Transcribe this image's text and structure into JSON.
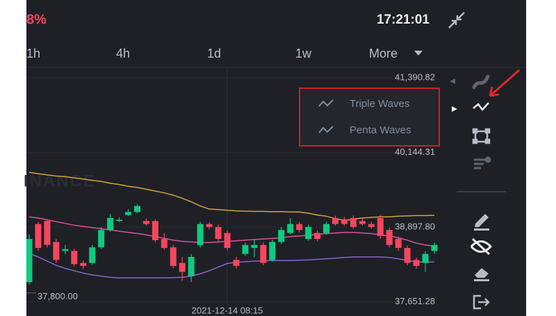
{
  "header": {
    "change": "8%",
    "time": "17:21:01"
  },
  "timeframes": [
    "1h",
    "4h",
    "1d",
    "1w"
  ],
  "more": "More",
  "watermark": "INANCE",
  "menu": {
    "items": [
      "Triple Waves",
      "Penta Waves"
    ]
  },
  "chart_data": {
    "type": "candlestick",
    "ylim": [
      37530,
      41530
    ],
    "yticks": [
      {
        "value": 41390.82,
        "label": "41,390.82"
      },
      {
        "value": 40144.31,
        "label": "40,144.31"
      },
      {
        "value": 38897.8,
        "label": "38,897.80"
      },
      {
        "value": 37651.28,
        "label": "37,651.28"
      }
    ],
    "crosshair": {
      "price": {
        "value": 37800,
        "label": "37,800.00"
      },
      "time": "2021-12-14 08:15"
    },
    "up_color": "#0ecb81",
    "down_color": "#f6465d",
    "open": [
      37980,
      38950,
      39000,
      38650,
      38500,
      38500,
      38300,
      38300,
      38560,
      38850,
      39000,
      39100,
      39150,
      39000,
      39000,
      38700,
      38560,
      38300,
      38080,
      38600,
      38950,
      38900,
      38800,
      38350,
      38450,
      38550,
      38600,
      38350,
      38650,
      38800,
      38950,
      38700,
      38800,
      38800,
      39050,
      39030,
      39050,
      39000,
      38950,
      39050,
      38850,
      38700,
      38550,
      38350,
      38300,
      38500
    ],
    "high": [
      38780,
      38990,
      39030,
      38700,
      38600,
      38540,
      38340,
      38600,
      38900,
      39120,
      39060,
      39200,
      39280,
      39040,
      39030,
      38800,
      38600,
      38400,
      38450,
      38990,
      38980,
      38940,
      38840,
      38400,
      38640,
      38700,
      38640,
      38690,
      38900,
      39050,
      38990,
      38940,
      38840,
      38990,
      39090,
      39070,
      39090,
      39040,
      38990,
      39100,
      38890,
      38740,
      38590,
      38390,
      38490,
      38640
    ],
    "low": [
      37940,
      38500,
      38560,
      38300,
      38450,
      38240,
      38200,
      38270,
      38530,
      38820,
      38980,
      39080,
      39130,
      38920,
      38640,
      38520,
      38210,
      38000,
      37980,
      38560,
      38860,
      38660,
      38510,
      38200,
      38420,
      38400,
      38260,
      38320,
      38620,
      38780,
      38810,
      38670,
      38660,
      38770,
      38920,
      38920,
      38870,
      38920,
      38870,
      38700,
      38560,
      38500,
      38260,
      38200,
      38150,
      38450
    ],
    "close": [
      38700,
      38550,
      38600,
      38350,
      38530,
      38280,
      38250,
      38560,
      38850,
      39050,
      39020,
      39150,
      39250,
      38950,
      38680,
      38550,
      38250,
      38150,
      38400,
      38950,
      38900,
      38700,
      38550,
      38250,
      38600,
      38600,
      38300,
      38650,
      38850,
      38950,
      38850,
      38900,
      38700,
      38950,
      38950,
      38950,
      38900,
      38950,
      38900,
      38750,
      38600,
      38550,
      38300,
      38250,
      38450,
      38600
    ],
    "series": [
      {
        "color": "#d4a437",
        "values": [
          39810,
          39790,
          39770,
          39750,
          39740,
          39720,
          39700,
          39680,
          39660,
          39630,
          39610,
          39580,
          39560,
          39530,
          39500,
          39470,
          39430,
          39380,
          39320,
          39250,
          39200,
          39190,
          39180,
          39170,
          39165,
          39160,
          39160,
          39155,
          39155,
          39150,
          39150,
          39130,
          39100,
          39080,
          39040,
          39010,
          39030,
          39050,
          39060,
          39070,
          39070,
          39080,
          39085,
          39090,
          39090,
          39095
        ]
      },
      {
        "color": "#d9539c",
        "values": [
          39070,
          39050,
          39020,
          38990,
          38960,
          38930,
          38910,
          38890,
          38870,
          38850,
          38830,
          38810,
          38790,
          38770,
          38740,
          38710,
          38680,
          38660,
          38650,
          38640,
          38640,
          38650,
          38660,
          38670,
          38680,
          38690,
          38700,
          38710,
          38720,
          38740,
          38750,
          38760,
          38780,
          38790,
          38800,
          38810,
          38810,
          38800,
          38790,
          38770,
          38750,
          38720,
          38680,
          38630,
          38600,
          38580
        ]
      },
      {
        "color": "#8a66c9",
        "values": [
          38460,
          38400,
          38330,
          38260,
          38210,
          38170,
          38130,
          38100,
          38080,
          38060,
          38050,
          38050,
          38050,
          38050,
          38050,
          38050,
          38055,
          38060,
          38080,
          38120,
          38170,
          38230,
          38290,
          38310,
          38320,
          38330,
          38335,
          38340,
          38340,
          38340,
          38345,
          38350,
          38360,
          38370,
          38380,
          38390,
          38400,
          38400,
          38400,
          38400,
          38390,
          38370,
          38340,
          38320,
          38310,
          38320
        ]
      }
    ]
  }
}
